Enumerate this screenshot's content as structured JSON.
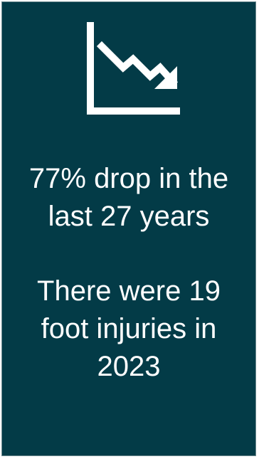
{
  "card": {
    "icon": "downward-trend-chart-icon",
    "stat_lines": [
      "77% drop in the",
      "last 27 years"
    ],
    "detail_lines": [
      "There were 19",
      "foot injuries in",
      "2023"
    ],
    "colors": {
      "background": "#033b47",
      "text": "#ffffff",
      "icon": "#ffffff"
    }
  }
}
